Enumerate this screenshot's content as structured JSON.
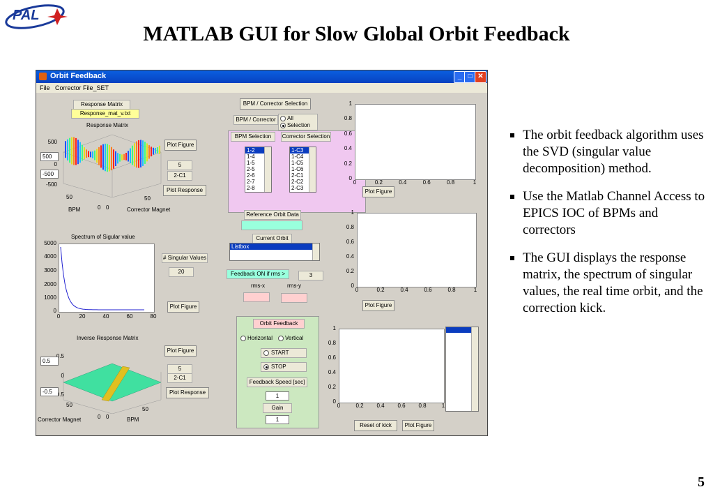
{
  "slide": {
    "logo_text": "PAL",
    "title": "MATLAB GUI for Slow Global Orbit Feedback",
    "page_number": "5",
    "bullets": [
      "The orbit feedback algorithm uses the SVD (singular value decomposition) method.",
      "Use the Matlab Channel Access to EPICS IOC of BPMs and correctors",
      "The GUI displays the response matrix, the spectrum of singular values, the real time orbit, and the correction kick."
    ]
  },
  "window": {
    "title": "Orbit Feedback",
    "menu": [
      "File",
      "Corrector File_SET"
    ]
  },
  "response_matrix": {
    "header_label": "Response Matrix",
    "file": "Response_mat_v.txt",
    "plot_title": "Response Matrix",
    "zticks": [
      "500",
      "0",
      "-500"
    ],
    "zmax_box": "500",
    "zmin_box": "-500",
    "xlabel_bpm": "BPM",
    "xlabel_corr": "Corrector Magnet",
    "axis_ticks": [
      "50",
      "0",
      "0",
      "50"
    ],
    "plot_figure_btn": "Plot Figure",
    "index_value": "5",
    "corrector_value": "2-C1",
    "plot_response_btn": "Plot Response"
  },
  "spectrum": {
    "plot_title": "Spectrum of Sigular value",
    "yticks": [
      "5000",
      "4000",
      "3000",
      "2000",
      "1000",
      "0"
    ],
    "xticks": [
      "0",
      "20",
      "40",
      "60",
      "80"
    ],
    "n_label": "# Singular Values",
    "n_value": "20",
    "plot_figure_btn": "Plot Figure"
  },
  "inverse": {
    "plot_title": "Inverse Response Matrix",
    "zticks": [
      "0.5",
      "0",
      "-0.5"
    ],
    "zmax_box": "0.5",
    "zmin_box": "-0.5",
    "xlabel_corr": "Corrector Magnet",
    "xlabel_bpm": "BPM",
    "axis_ticks": [
      "50",
      "0",
      "0",
      "50"
    ],
    "plot_figure_btn": "Plot Figure",
    "index_value": "5",
    "corrector_value": "2-C1",
    "plot_response_btn": "Plot Response"
  },
  "selection": {
    "header": "BPM / Corrector Selection",
    "mode_label": "BPM / Corrector",
    "opt_all": "All",
    "opt_selection": "Selection",
    "bpm_header": "BPM Selection",
    "corr_header": "Corrector Selection",
    "bpm_items": [
      "1-2",
      "1-4",
      "1-5",
      "2-5",
      "2-6",
      "2-7",
      "2-8"
    ],
    "corr_items": [
      "1-C3",
      "1-C4",
      "1-C5",
      "1-C6",
      "2-C1",
      "2-C2",
      "2-C3"
    ]
  },
  "orbit": {
    "ref_label": "Reference Orbit Data",
    "current_label": "Current Orbit",
    "listbox_item": "Listbox",
    "feedback_on_label": "Feedback ON if rms >",
    "threshold": "3",
    "rms_x": "rms-x",
    "rms_y": "rms-y"
  },
  "feedback": {
    "header": "Orbit Feedback",
    "horizontal": "Horizontal",
    "vertical": "Vertical",
    "start": "START",
    "stop": "STOP",
    "speed_label": "Feedback Speed [sec]",
    "speed_value": "1",
    "gain_label": "Gain",
    "gain_value": "1"
  },
  "plots_right": {
    "yticks": [
      "1",
      "0.8",
      "0.6",
      "0.4",
      "0.2",
      "0"
    ],
    "xticks": [
      "0",
      "0.2",
      "0.4",
      "0.6",
      "0.8",
      "1"
    ],
    "plot_figure_btn": "Plot Figure",
    "reset_kick_btn": "Reset of kick"
  },
  "colors": {
    "titlebar": "#0a5fe0",
    "selection_panel": "#f0c8f0",
    "feedback_panel": "#cce8c0",
    "label_yellow": "#ffff99",
    "label_cyan": "#99ffdd",
    "label_pink": "#ffd0d0"
  }
}
